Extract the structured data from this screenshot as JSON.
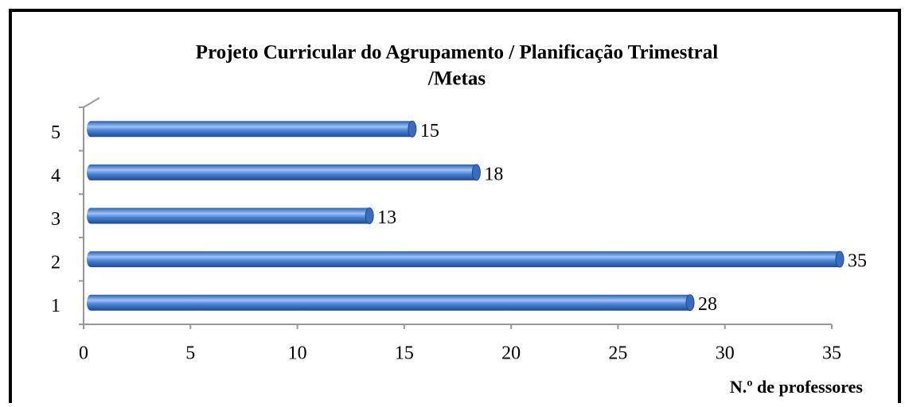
{
  "chart_data": {
    "type": "bar",
    "orientation": "horizontal",
    "title": [
      "Projeto Curricular do Agrupamento / Planificação Trimestral",
      "/Metas"
    ],
    "xlabel": "N.º de professores",
    "categories": [
      "1",
      "2",
      "3",
      "4",
      "5"
    ],
    "values": [
      28,
      35,
      13,
      18,
      15
    ],
    "color": "#4a7fd0",
    "xlim": [
      0,
      35
    ],
    "xticks": [
      0,
      5,
      10,
      15,
      20,
      25,
      30,
      35
    ],
    "grid": false
  }
}
